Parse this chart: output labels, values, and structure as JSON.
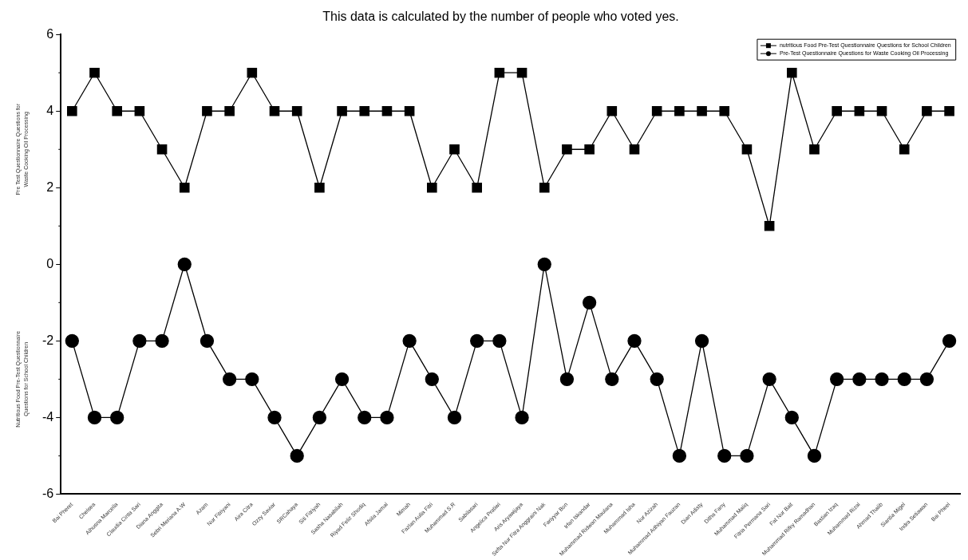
{
  "chart_data": {
    "type": "line",
    "title": "This data is calculated by the number of people who voted yes.",
    "ylabel": "Pre Test Questionnaire Questions for Waste Cooking Oil Processing",
    "annotations": [
      "Nutritious Food Pre-Test Questionnaire Questions for School Children"
    ],
    "categories": [
      "Bai Pheret",
      "Chelsea",
      "Alhusna Marcella",
      "Claudia Cinta Sari",
      "Diana Anggita",
      "Sebri Meriana A.W",
      "Azam",
      "Nur Fitriyani",
      "Aira Citra",
      "Ozzy Saviar",
      "SRCahaya",
      "Siti Fitriyah",
      "Sasha Nasabilah",
      "Riyad Feliz Shodiq",
      "Afsila Jamal",
      "Mimah",
      "Fazlan Aulia Fitri",
      "Muhammad S.R",
      "Sabilasari",
      "Angelica Pratiwi",
      "Aris Aryawijaya",
      "Sefta Nur Fitra Anggraini Nak",
      "Fariyyar Bon",
      "Irfan Iskandar",
      "Muhammad Ridwan Maulana",
      "Muhammad Isha",
      "Nur Azizah",
      "Muhammad Adhiyan Fauzan",
      "Dian Adisty",
      "Ditha Fany",
      "Muhammad Maliq",
      "Fitria Permana Sari",
      "Fat Nur Bait",
      "Muhammad Rifky Ramadhan",
      "Bastian Izaq",
      "Muhammad Rizal",
      "Ahmad Thalib",
      "Siantia Migel",
      "Indra Setiawan",
      "Bai Pheel"
    ],
    "series": [
      {
        "name": "nutritious Food Pre-Test Questionnaire Questions for School Children",
        "color": "#000000",
        "marker": "square",
        "values": [
          4,
          5,
          4,
          4,
          3,
          2,
          4,
          4,
          5,
          4,
          4,
          2,
          4,
          4,
          4,
          4,
          2,
          3,
          2,
          5,
          5,
          2,
          3,
          3,
          4,
          3,
          4,
          4,
          4,
          4,
          3,
          1,
          5,
          3,
          4,
          4,
          4,
          3,
          4,
          4
        ]
      },
      {
        "name": "Pre-Test Questionnaire Questions for Waste Cooking Oil Processing",
        "color": "#000000",
        "marker": "circle",
        "values": [
          -2,
          -4,
          -4,
          -2,
          -2,
          0,
          -2,
          -3,
          -3,
          -4,
          -5,
          -4,
          -3,
          -4,
          -4,
          -2,
          -3,
          -4,
          -2,
          -2,
          -4,
          0,
          -3,
          -1,
          -3,
          -2,
          -3,
          -5,
          -2,
          -5,
          -5,
          -3,
          -4,
          -5,
          -3,
          -3,
          -3,
          -3,
          -3,
          -2
        ]
      }
    ],
    "ylim": [
      -6,
      6
    ],
    "yticks": [
      -6,
      -4,
      -2,
      0,
      2,
      4,
      6
    ],
    "grid": false,
    "legend": "top right",
    "line_style": "solid"
  }
}
